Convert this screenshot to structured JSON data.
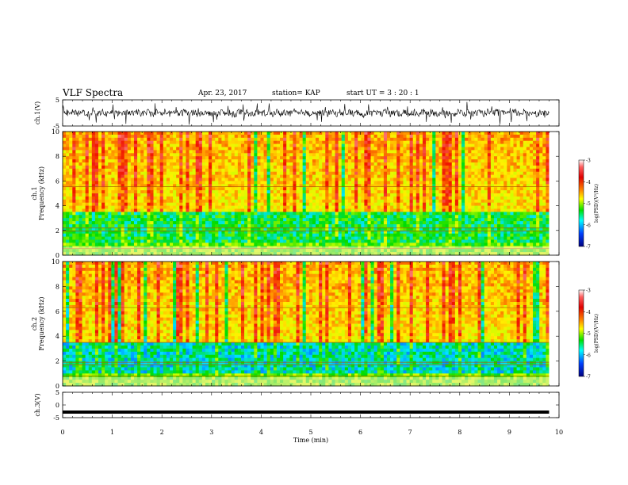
{
  "header": {
    "title": "VLF Spectra",
    "date": "Apr. 23, 2017",
    "station": "station= KAP",
    "start": "start  UT  =   3  : 20 : 1"
  },
  "chart_data": [
    {
      "type": "line",
      "name": "ch1-waveform",
      "ylabel": "ch.1(V)",
      "ylim": [
        -5,
        5
      ],
      "yticks": [
        "5",
        "-5"
      ],
      "xlim": [
        0,
        10
      ]
    },
    {
      "type": "heatmap",
      "name": "ch1-spectrogram",
      "ylabel": "ch.1\nFrequency (kHz)",
      "ylim": [
        0,
        10
      ],
      "yticks": [
        "0",
        "2",
        "4",
        "6",
        "8",
        "10"
      ],
      "xlim": [
        0,
        10
      ],
      "data_end_min": 9.8,
      "colorbar": {
        "label": "log(PSD)(V²/Hz)",
        "range": [
          -7,
          -3
        ],
        "ticks": [
          "-3",
          "-4",
          "-5",
          "-6",
          "-7"
        ]
      }
    },
    {
      "type": "heatmap",
      "name": "ch2-spectrogram",
      "ylabel": "ch.2\nFrequency (kHz)",
      "ylim": [
        0,
        10
      ],
      "yticks": [
        "0",
        "2",
        "4",
        "6",
        "8",
        "10"
      ],
      "xlim": [
        0,
        10
      ],
      "data_end_min": 9.8,
      "colorbar": {
        "label": "log(PSD)(V²/Hz)",
        "range": [
          -7,
          -3
        ],
        "ticks": [
          "-3",
          "-4",
          "-5",
          "-6",
          "-7"
        ]
      }
    },
    {
      "type": "line",
      "name": "ch3-waveform",
      "ylabel": "ch.3(V)",
      "ylim": [
        -5,
        5
      ],
      "yticks": [
        "5",
        "0",
        "-5"
      ],
      "xlim": [
        0,
        10
      ],
      "constant_value": -2.8
    }
  ],
  "xaxis": {
    "label": "Time (min)",
    "ticks": [
      "0",
      "1",
      "2",
      "3",
      "4",
      "5",
      "6",
      "7",
      "8",
      "9",
      "10"
    ]
  }
}
